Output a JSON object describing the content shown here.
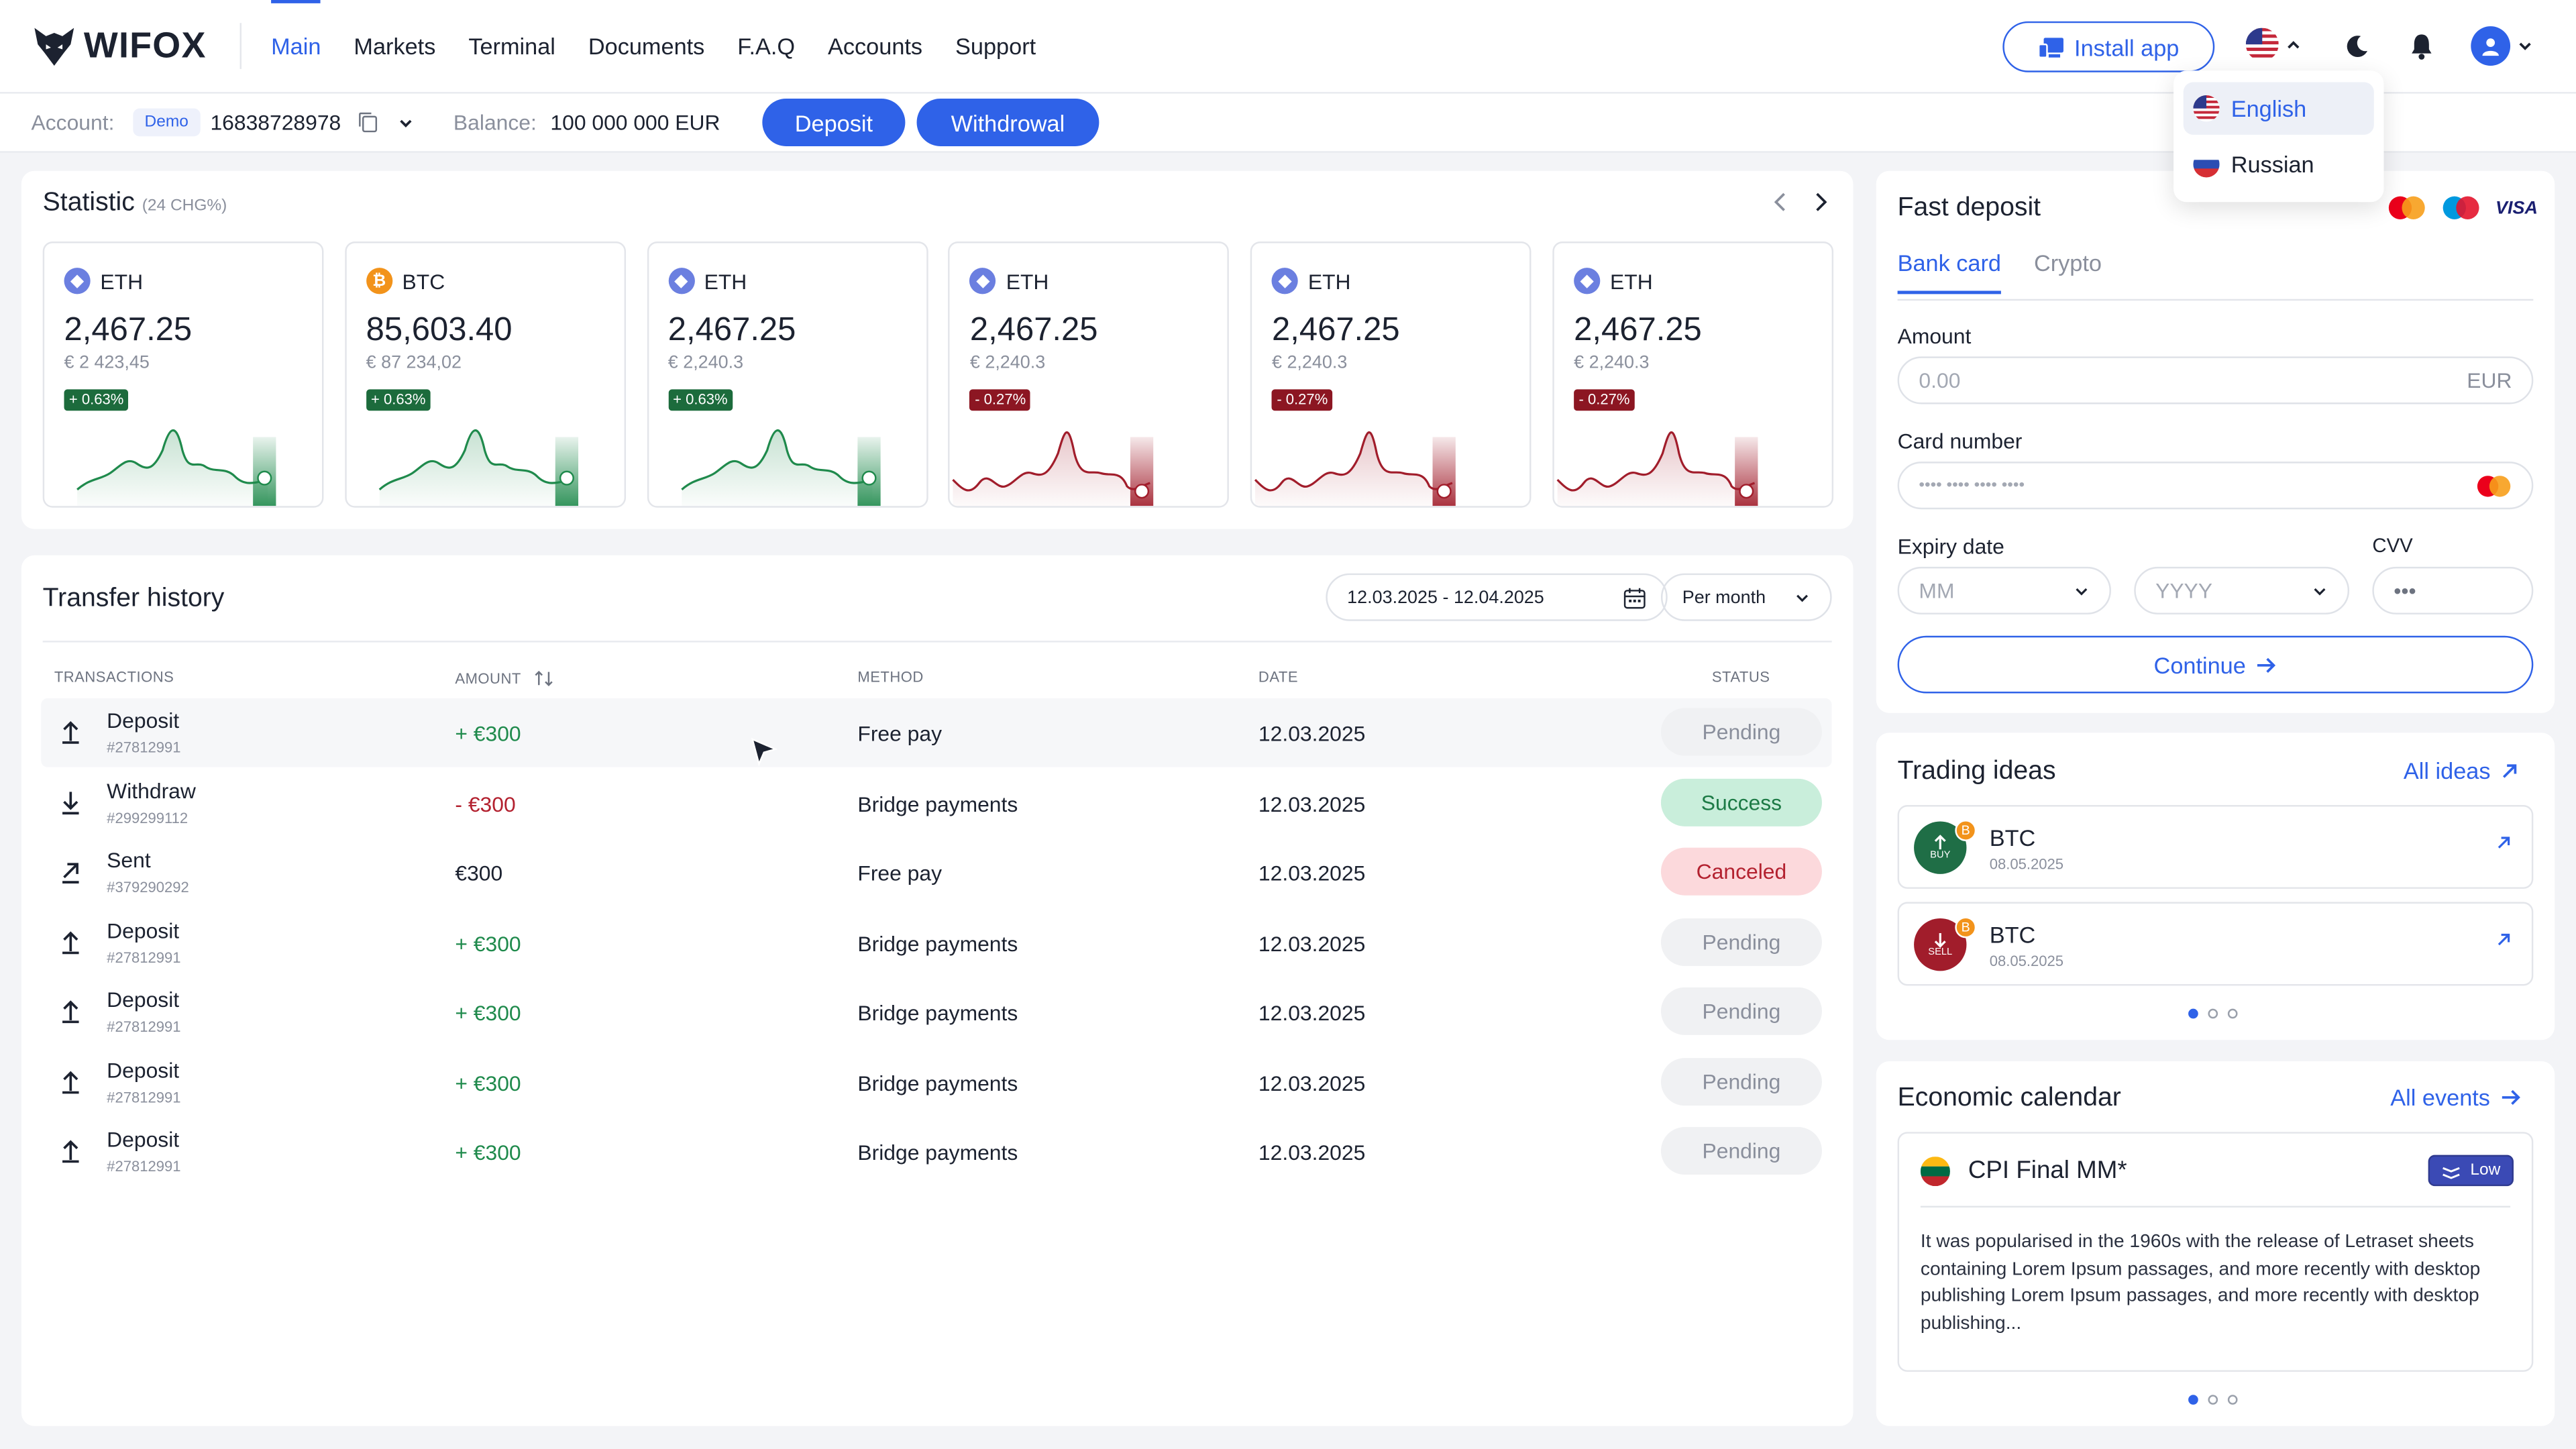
{
  "brand": {
    "name": "WIFOX"
  },
  "nav": {
    "items": [
      "Main",
      "Markets",
      "Terminal",
      "Documents",
      "F.A.Q",
      "Accounts",
      "Support"
    ],
    "active": "Main"
  },
  "header": {
    "install_label": "Install app",
    "icons": [
      "us-flag-icon",
      "chevron-up-icon",
      "moon-icon",
      "bell-icon",
      "user-icon",
      "chevron-down-icon"
    ]
  },
  "language": {
    "options": [
      "English",
      "Russian"
    ],
    "selected": "English"
  },
  "account": {
    "label": "Account:",
    "type": "Demo",
    "number": "16838728978",
    "balance_label": "Balance:",
    "balance": "100 000 000 EUR",
    "deposit_label": "Deposit",
    "withdrawal_label": "Withdrowal"
  },
  "statistic": {
    "title": "Statistic",
    "subtitle": "(24 CHG%)",
    "tiles": [
      {
        "symbol": "ETH",
        "price": "2,467.25",
        "eur": "€ 2 423,45",
        "change": "+ 0.63%",
        "trend": "up"
      },
      {
        "symbol": "BTC",
        "price": "85,603.40",
        "eur": "€ 87 234,02",
        "change": "+ 0.63%",
        "trend": "up"
      },
      {
        "symbol": "ETH",
        "price": "2,467.25",
        "eur": "€ 2,240.3",
        "change": "+ 0.63%",
        "trend": "up"
      },
      {
        "symbol": "ETH",
        "price": "2,467.25",
        "eur": "€ 2,240.3",
        "change": "- 0.27%",
        "trend": "down"
      },
      {
        "symbol": "ETH",
        "price": "2,467.25",
        "eur": "€ 2,240.3",
        "change": "- 0.27%",
        "trend": "down"
      },
      {
        "symbol": "ETH",
        "price": "2,467.25",
        "eur": "€ 2,240.3",
        "change": "- 0.27%",
        "trend": "down"
      }
    ],
    "colors": {
      "up": "#1f8a4c",
      "down": "#a11d2b",
      "eth": "#6b7fe0",
      "btc": "#f2931b"
    }
  },
  "transfer": {
    "title": "Transfer history",
    "date_range": "12.03.2025 - 12.04.2025",
    "period": "Per month",
    "columns": [
      "TRANSACTIONS",
      "AMOUNT",
      "METHOD",
      "DATE",
      "STATUS"
    ],
    "rows": [
      {
        "type": "Deposit",
        "id": "#27812991",
        "amount": "+ €300",
        "method": "Free pay",
        "date": "12.03.2025",
        "status": "Pending",
        "icon": "arrow-up-icon"
      },
      {
        "type": "Withdraw",
        "id": "#299299112",
        "amount": "- €300",
        "method": "Bridge payments",
        "date": "12.03.2025",
        "status": "Success",
        "icon": "arrow-down-icon"
      },
      {
        "type": "Sent",
        "id": "#379290292",
        "amount": "€300",
        "method": "Free pay",
        "date": "12.03.2025",
        "status": "Canceled",
        "icon": "arrow-up-right-icon"
      },
      {
        "type": "Deposit",
        "id": "#27812991",
        "amount": "+ €300",
        "method": "Bridge payments",
        "date": "12.03.2025",
        "status": "Pending",
        "icon": "arrow-up-icon"
      },
      {
        "type": "Deposit",
        "id": "#27812991",
        "amount": "+ €300",
        "method": "Bridge payments",
        "date": "12.03.2025",
        "status": "Pending",
        "icon": "arrow-up-icon"
      },
      {
        "type": "Deposit",
        "id": "#27812991",
        "amount": "+ €300",
        "method": "Bridge payments",
        "date": "12.03.2025",
        "status": "Pending",
        "icon": "arrow-up-icon"
      },
      {
        "type": "Deposit",
        "id": "#27812991",
        "amount": "+ €300",
        "method": "Bridge payments",
        "date": "12.03.2025",
        "status": "Pending",
        "icon": "arrow-up-icon"
      }
    ]
  },
  "fast_deposit": {
    "title": "Fast deposit",
    "tabs": [
      "Bank card",
      "Crypto"
    ],
    "amount_label": "Amount",
    "amount_placeholder": "0.00",
    "currency": "EUR",
    "card_label": "Card number",
    "card_placeholder": "•••• •••• •••• ••••",
    "expiry_label": "Expiry date",
    "month_placeholder": "MM",
    "year_placeholder": "YYYY",
    "cvv_label": "CVV",
    "cvv_placeholder": "•••",
    "continue_label": "Continue",
    "payment_logos": [
      "mastercard-icon",
      "maestro-icon",
      "VISA"
    ]
  },
  "trading_ideas": {
    "title": "Trading ideas",
    "link": "All ideas",
    "items": [
      {
        "coin": "BTC",
        "date": "08.05.2025",
        "action": "BUY",
        "coin_badge": "B"
      },
      {
        "coin": "BTC",
        "date": "08.05.2025",
        "action": "SELL",
        "coin_badge": "B"
      }
    ]
  },
  "economic_calendar": {
    "title": "Economic calendar",
    "link": "All events",
    "event": {
      "name": "CPI Final MM*",
      "impact": "Low",
      "text": "It was popularised in the 1960s with the release of Letraset sheets containing Lorem Ipsum passages, and more recently with desktop publishing Lorem Ipsum passages, and more recently with desktop publishing..."
    }
  }
}
